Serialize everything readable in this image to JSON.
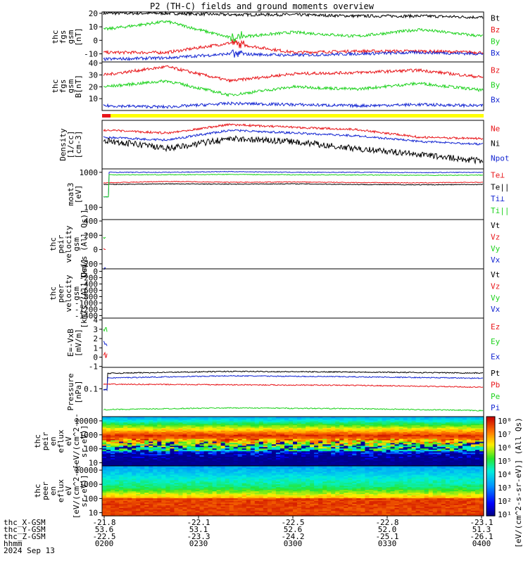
{
  "title": "P2 (TH-C) fields and ground moments overview",
  "colors": {
    "black": "#000000",
    "red": "#e8161a",
    "green": "#1ed21e",
    "blue": "#1426d2",
    "yellow": "#ffff00"
  },
  "chart_data": [
    {
      "type": "line",
      "ylabel": [
        "thc",
        "fgs",
        "gsm",
        "[nT]"
      ],
      "ylim": [
        -16,
        21
      ],
      "ticks": [
        20,
        10,
        0,
        -10
      ],
      "series": [
        {
          "name": "Bt",
          "color": "black",
          "values": [
            20,
            20,
            19,
            19,
            18,
            18,
            17
          ]
        },
        {
          "name": "Bz",
          "color": "red",
          "values": [
            -9,
            -9,
            -2,
            -9,
            -8,
            -8,
            -9
          ]
        },
        {
          "name": "By",
          "color": "green",
          "values": [
            8,
            14,
            2,
            6,
            3,
            8,
            3
          ]
        },
        {
          "name": "Bx",
          "color": "blue",
          "values": [
            -14,
            -13,
            -10,
            -11,
            -10,
            -9,
            -10
          ]
        }
      ]
    },
    {
      "type": "line",
      "ylabel": [
        "thc",
        "fgs",
        "gsm",
        "B[nT]"
      ],
      "ylim": [
        0,
        41
      ],
      "ticks": [
        40,
        30,
        20,
        10
      ],
      "series": [
        {
          "name": "Bz",
          "color": "red",
          "values": [
            30,
            37,
            25,
            31,
            32,
            34,
            28
          ]
        },
        {
          "name": "By",
          "color": "green",
          "values": [
            20,
            25,
            13,
            20,
            18,
            23,
            17
          ]
        },
        {
          "name": "Bx",
          "color": "blue",
          "values": [
            4,
            3,
            6,
            5,
            4,
            5,
            4
          ]
        }
      ]
    },
    {
      "type": "line",
      "ylabel": [
        "Density",
        "[1/cc]",
        "[cm-3]"
      ],
      "series": [
        {
          "name": "Ne",
          "color": "red"
        },
        {
          "name": "Ni",
          "color": "black"
        },
        {
          "name": "Npot",
          "color": "blue"
        }
      ]
    },
    {
      "type": "line",
      "ylabel": [
        "moat3",
        "[eV]"
      ],
      "yscale": "log",
      "ticks": [
        1000,
        100
      ],
      "series": [
        {
          "name": "Te⊥",
          "color": "red",
          "values": [
            500,
            550,
            520,
            530,
            510,
            500,
            520
          ]
        },
        {
          "name": "Te||",
          "color": "black",
          "values": [
            450,
            470,
            460,
            470,
            450,
            440,
            450
          ]
        },
        {
          "name": "Ti⊥",
          "color": "blue",
          "values": [
            1000,
            1000,
            1050,
            1000,
            1000,
            980,
            1000
          ]
        },
        {
          "name": "Ti||",
          "color": "green",
          "values": [
            850,
            850,
            870,
            850,
            840,
            820,
            830
          ]
        }
      ]
    },
    {
      "type": "line",
      "ylabel": [
        "thc",
        "peir",
        "velocity",
        "gsm",
        "[km/s (All Qs)]"
      ],
      "ticks": [
        400,
        200,
        0,
        -200
      ],
      "series": [
        {
          "name": "Vt",
          "color": "black"
        },
        {
          "name": "Vz",
          "color": "red"
        },
        {
          "name": "Vy",
          "color": "green"
        },
        {
          "name": "Vx",
          "color": "blue"
        }
      ]
    },
    {
      "type": "line",
      "ylabel": [
        "thc",
        "peer",
        "velocity",
        "gsm",
        "[km/s (All Qs)]"
      ],
      "ticks": [
        0,
        -200,
        -400,
        -600,
        -800,
        -1000,
        -1200,
        -1400
      ],
      "series": [
        {
          "name": "Vt",
          "color": "black"
        },
        {
          "name": "Vz",
          "color": "red"
        },
        {
          "name": "Vy",
          "color": "green"
        },
        {
          "name": "Vx",
          "color": "blue"
        }
      ]
    },
    {
      "type": "line",
      "ylabel": [
        "E=-VxB",
        "[mV/m]"
      ],
      "ticks": [
        4,
        3,
        2,
        1,
        0,
        -1
      ],
      "series": [
        {
          "name": "Ez",
          "color": "red"
        },
        {
          "name": "Ey",
          "color": "green"
        },
        {
          "name": "Ex",
          "color": "blue"
        }
      ]
    },
    {
      "type": "line",
      "ylabel": [
        "Pressure",
        "[nPa]"
      ],
      "yscale": "log",
      "ticks": [
        0.1
      ],
      "series": [
        {
          "name": "Pt",
          "color": "black"
        },
        {
          "name": "Pb",
          "color": "red"
        },
        {
          "name": "Pe",
          "color": "green"
        },
        {
          "name": "Pi",
          "color": "blue"
        }
      ]
    },
    {
      "type": "heatmap",
      "ylabel": [
        "thc",
        "peir",
        "en",
        "eflux",
        "eV",
        "[eV/(cm^2-s-",
        "sr-eV)]"
      ],
      "yscale": "log",
      "ticks": [
        10000,
        1000,
        100,
        10
      ]
    },
    {
      "type": "heatmap",
      "ylabel": [
        "thc",
        "peer",
        "en",
        "eflux",
        "eV",
        "[eV/(cm^2-s-",
        "sr-eV)]"
      ],
      "yscale": "log",
      "ticks": [
        10000,
        1000,
        100,
        10
      ]
    }
  ],
  "colorbar": {
    "ticks": [
      "10⁸",
      "10⁷",
      "10⁶",
      "10⁵",
      "10⁴",
      "10³",
      "10²",
      "10¹"
    ],
    "label": "[eV/(cm^2-s-sr-eV)] (All Qs)"
  },
  "xaxis": {
    "rows": [
      {
        "label": "thc_X-GSM",
        "values": [
          "-21.8",
          "-22.1",
          "-22.5",
          "-22.8",
          "-23.1"
        ]
      },
      {
        "label": "thc_Y-GSM",
        "values": [
          "53.6",
          "53.1",
          "52.6",
          "52.0",
          "51.3"
        ]
      },
      {
        "label": "thc_Z-GSM",
        "values": [
          "-22.5",
          "-23.3",
          "-24.2",
          "-25.1",
          "-26.1"
        ]
      },
      {
        "label": "hhmm",
        "values": [
          "0200",
          "0230",
          "0300",
          "0330",
          "0400"
        ]
      }
    ],
    "date": "2024 Sep 13"
  }
}
